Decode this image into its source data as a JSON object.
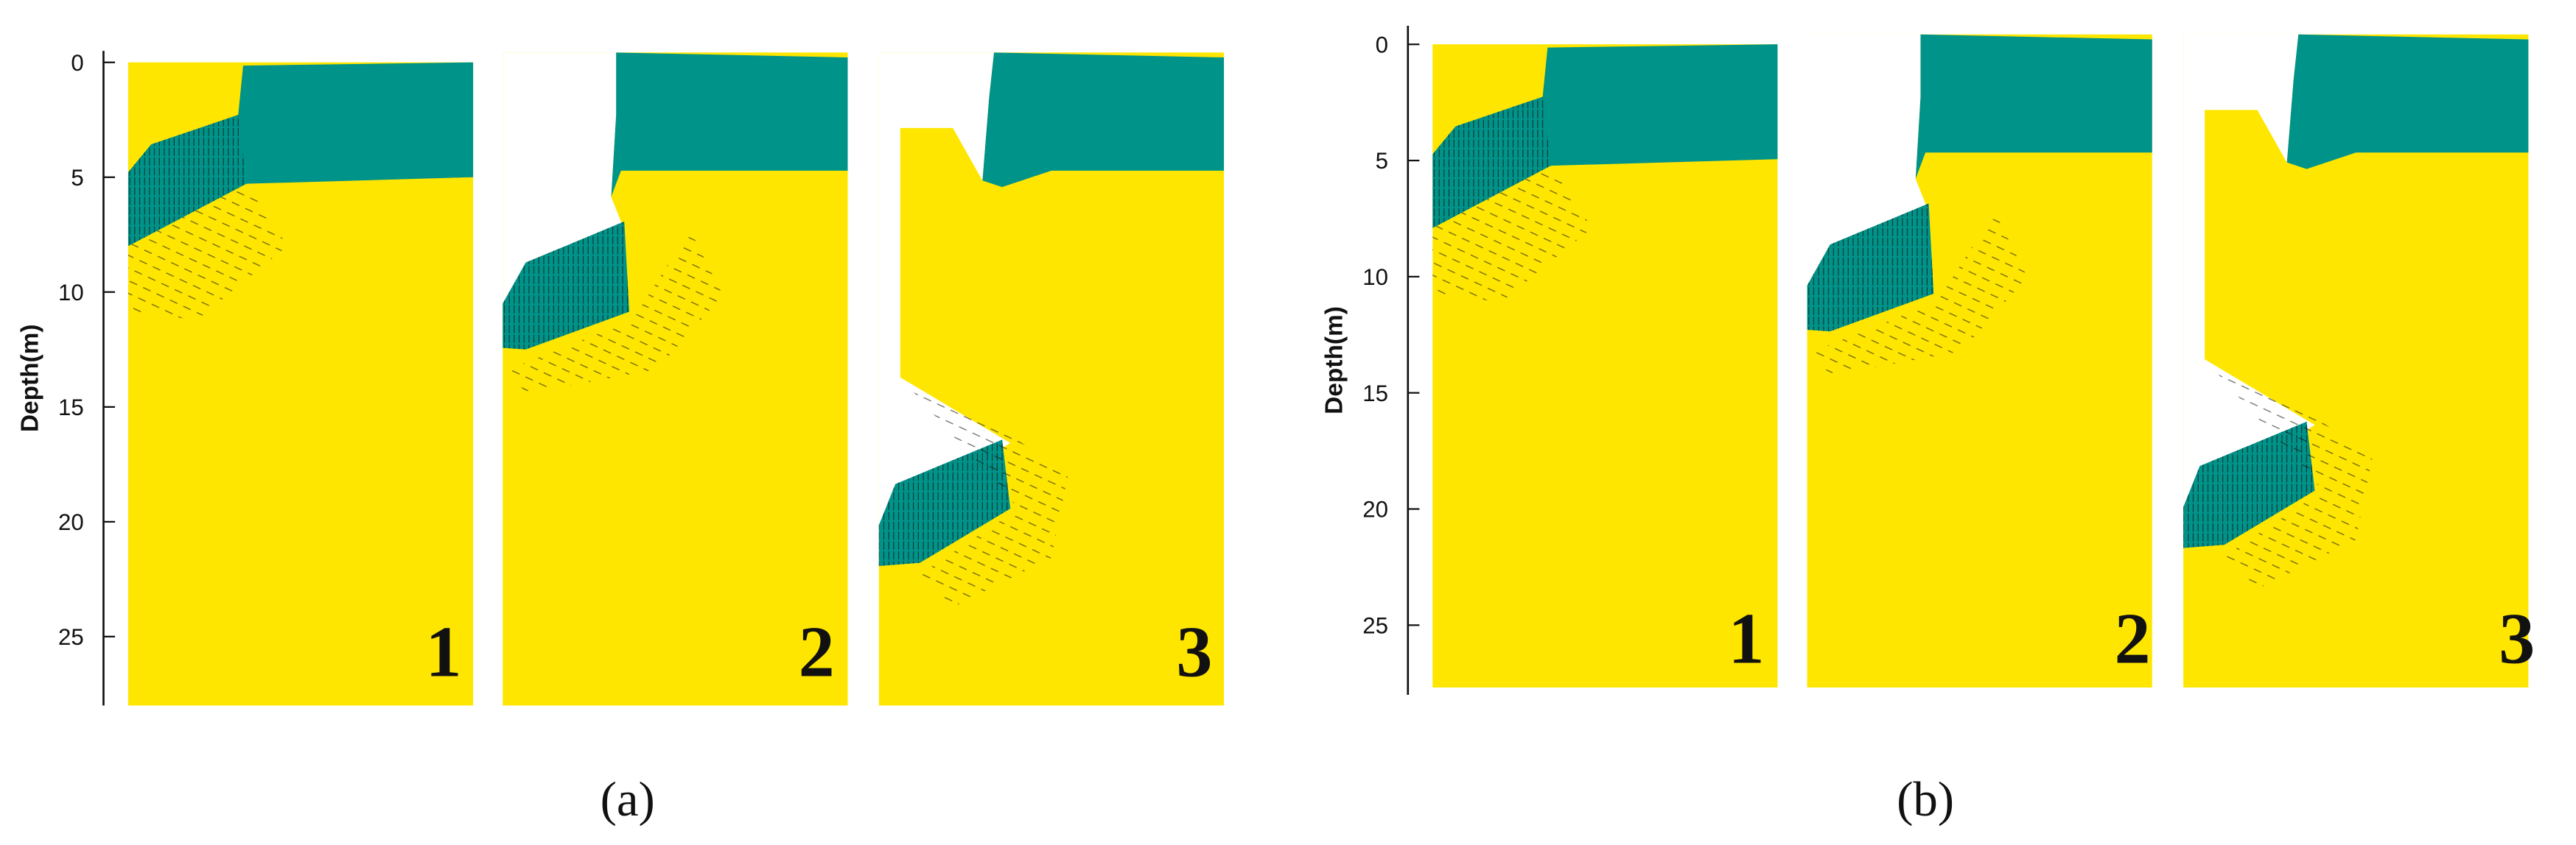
{
  "panels": [
    {
      "caption": "(a)",
      "y_axis": {
        "label": "Depth(m)",
        "ylim": [
          -0.5,
          28
        ],
        "yticks": [
          0,
          5,
          10,
          15,
          20,
          25
        ]
      },
      "snapshots": [
        "1",
        "2",
        "3"
      ]
    },
    {
      "caption": "(b)",
      "y_axis": {
        "label": "Depth(m)",
        "ylim": [
          -0.8,
          28
        ],
        "yticks": [
          0,
          5,
          10,
          15,
          20,
          25
        ]
      },
      "snapshots": [
        "1",
        "2",
        "3"
      ]
    }
  ]
}
